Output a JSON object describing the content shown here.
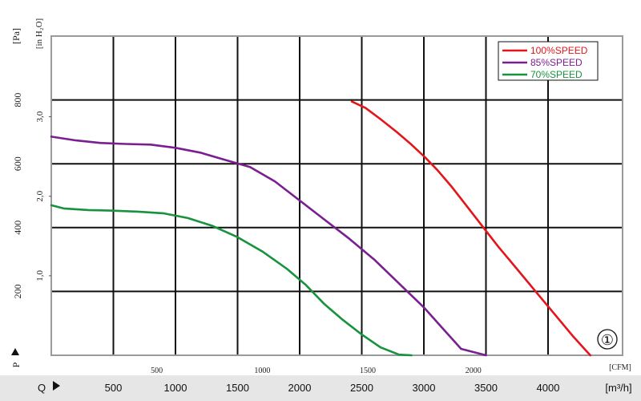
{
  "chart_data": {
    "type": "line",
    "title": "",
    "badge": "①",
    "x_axis": {
      "symbol": "Q",
      "unit": "[m³/h]",
      "ticks": [
        500,
        1000,
        1500,
        2000,
        2500,
        3000,
        3500,
        4000
      ],
      "range": [
        0,
        4600
      ]
    },
    "x_axis_secondary": {
      "unit": "[CFM]",
      "ticks": [
        500,
        1000,
        1500,
        2000
      ],
      "factor": 1.699
    },
    "y_axis": {
      "symbol": "P",
      "unit": "[Pa]",
      "ticks": [
        200,
        400,
        600,
        800
      ],
      "range": [
        0,
        1000
      ]
    },
    "y_axis_secondary": {
      "unit": "[in H₂O]",
      "ticks": [
        "1,0",
        "2,0",
        "3,0"
      ],
      "values": [
        1.0,
        2.0,
        3.0
      ],
      "factor": 249.09
    },
    "grid": true,
    "legend_position": "top-right",
    "series": [
      {
        "name": "100%SPEED",
        "color": "#e3151a",
        "x": [
          2420,
          2530,
          2650,
          2780,
          2900,
          3010,
          3110,
          3220,
          3350,
          3480,
          3600,
          3750,
          3900,
          4050,
          4200,
          4340
        ],
        "y": [
          795,
          775,
          740,
          700,
          660,
          620,
          580,
          530,
          465,
          400,
          340,
          270,
          200,
          130,
          60,
          0
        ]
      },
      {
        "name": "85%SPEED",
        "color": "#7a1e91",
        "x": [
          0,
          200,
          400,
          600,
          800,
          1000,
          1200,
          1400,
          1600,
          1800,
          2000,
          2200,
          2400,
          2600,
          2800,
          3000,
          3150,
          3300,
          3500
        ],
        "y": [
          685,
          673,
          665,
          662,
          660,
          650,
          635,
          612,
          590,
          545,
          485,
          425,
          365,
          300,
          225,
          150,
          85,
          20,
          0
        ]
      },
      {
        "name": "70%SPEED",
        "color": "#16933c",
        "x": [
          0,
          100,
          300,
          500,
          700,
          900,
          1100,
          1300,
          1500,
          1700,
          1900,
          2050,
          2200,
          2350,
          2500,
          2650,
          2800,
          2900
        ],
        "y": [
          470,
          460,
          455,
          453,
          450,
          445,
          430,
          405,
          370,
          325,
          270,
          220,
          160,
          110,
          65,
          25,
          2,
          0
        ]
      }
    ]
  }
}
